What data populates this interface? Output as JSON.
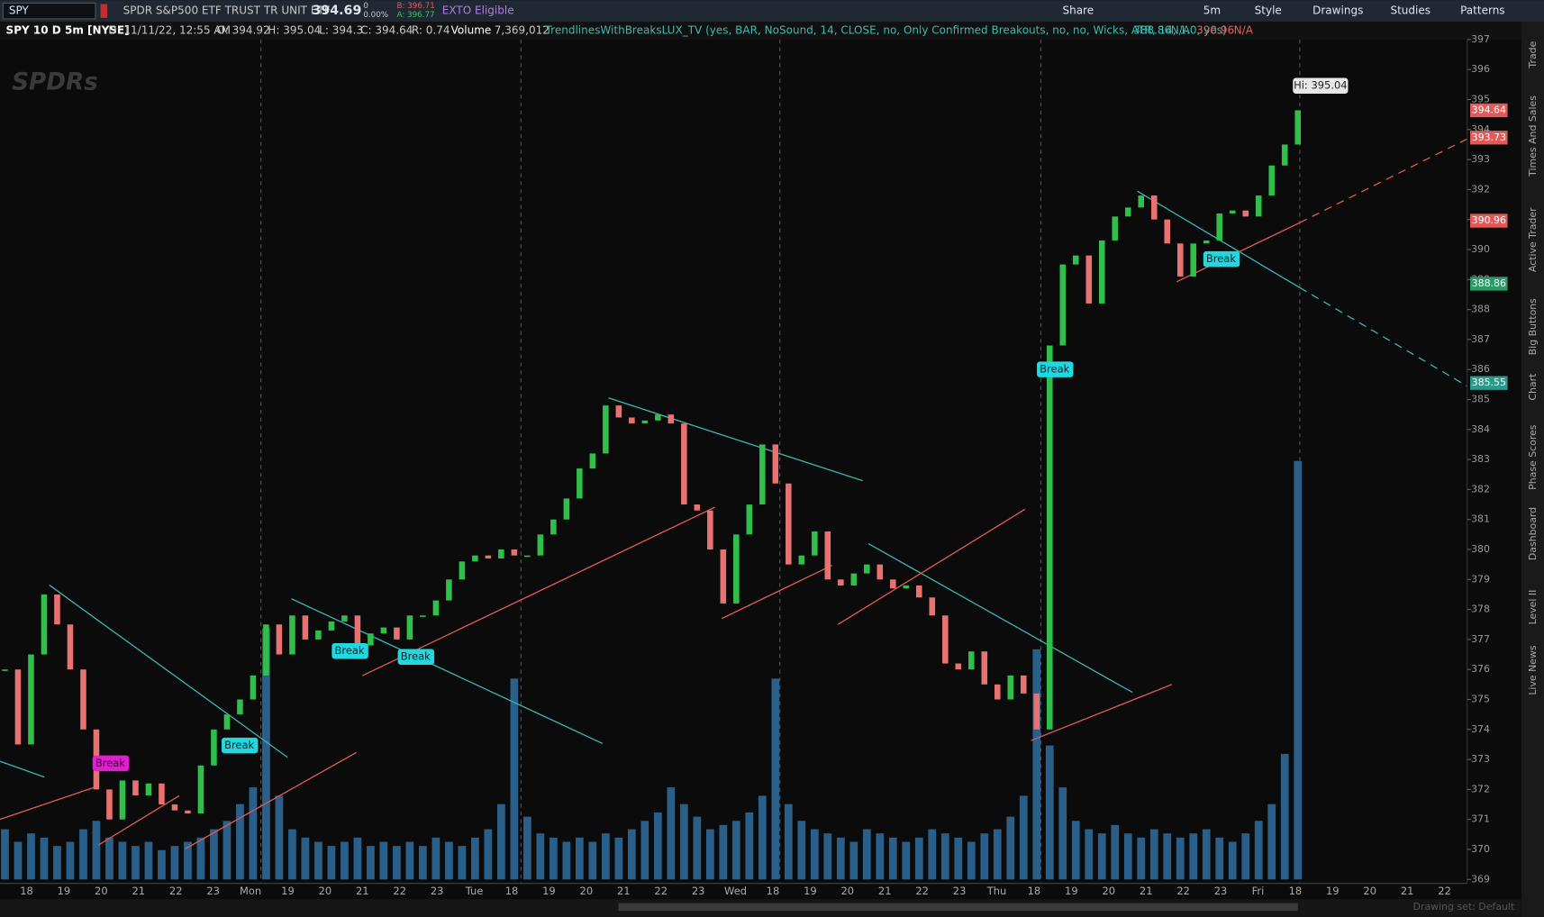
{
  "toolbar": {
    "symbol": "SPY",
    "description": "SPDR S&P500 ETF TRUST TR UNIT ETF",
    "last": "394.69",
    "change": "0",
    "change_pct": "0.00%",
    "bid": "B: 396.71",
    "ask": "A: 396.77",
    "exto": "EXTO Eligible",
    "buttons": [
      "Share",
      "5m",
      "Style",
      "Drawings",
      "Studies",
      "Patterns"
    ]
  },
  "info_bar": {
    "chart": "SPY 10 D 5m [NYSE]",
    "date": "D: 11/11/22, 12:55 AM",
    "open": "O: 394.92",
    "high": "H: 395.04",
    "low": "L: 394.3",
    "close": "C: 394.64",
    "range": "R: 0.74",
    "volume_label": "Volume",
    "volume": "7,369,012",
    "study": "TrendlinesWithBreaksLUX_TV (yes, BAR, NoSound, 14, CLOSE, no, Only Confirmed Breakouts, no, no, Wicks, ATR, 14, 1.0, yes)",
    "study_values": [
      "388.86",
      "N/A",
      "390.96",
      "N/A"
    ]
  },
  "logo": "SPDRs",
  "side_tabs": [
    "Trade",
    "Times And Sales",
    "Active Trader",
    "Big Buttons",
    "Chart",
    "Phase Scores",
    "Dashboard",
    "Level II",
    "Live News"
  ],
  "footer": "Drawing set: Default",
  "chart_data": {
    "type": "candlestick",
    "x_labels": [
      "18",
      "19",
      "20",
      "21",
      "22",
      "23",
      "Mon",
      "19",
      "20",
      "21",
      "22",
      "23",
      "Tue",
      "18",
      "19",
      "20",
      "21",
      "22",
      "23",
      "Wed",
      "18",
      "19",
      "20",
      "21",
      "22",
      "23",
      "Thu",
      "18",
      "19",
      "20",
      "21",
      "22",
      "23",
      "Fri",
      "18",
      "19",
      "20",
      "21",
      "22"
    ],
    "ylim": [
      369,
      397
    ],
    "yticks": [
      369,
      370,
      371,
      372,
      373,
      374,
      375,
      376,
      377,
      378,
      379,
      380,
      381,
      382,
      383,
      384,
      385,
      386,
      387,
      388,
      389,
      390,
      391,
      392,
      393,
      394,
      395,
      396,
      397
    ],
    "series": [
      {
        "name": "SPY",
        "up_color": "#2fbf4a",
        "down_color": "#e87272",
        "values": [
          376,
          373.5,
          376.5,
          378.5,
          377.5,
          376,
          374,
          372,
          371,
          372.3,
          371.8,
          372.2,
          371.5,
          371.3,
          371.2,
          372.8,
          374,
          374.5,
          375,
          375.8,
          377.5,
          376.5,
          377.8,
          377,
          377.3,
          377.6,
          377.8,
          376.8,
          377.2,
          377.4,
          377,
          377.8,
          377.8,
          378.3,
          379,
          379.6,
          379.8,
          379.7,
          380,
          379.8,
          379.8,
          380.5,
          381,
          381.7,
          382.7,
          383.2,
          384.8,
          384.4,
          384.2,
          384.3,
          384.5,
          384.2,
          381.5,
          381.3,
          380,
          378.2,
          380.5,
          381.5,
          383.5,
          382.2,
          379.5,
          379.8,
          380.6,
          379,
          378.8,
          379.2,
          379.5,
          379,
          378.7,
          378.8,
          378.4,
          377.8,
          376.2,
          376,
          376.6,
          375.5,
          375,
          375.8,
          375.2,
          374,
          386.8,
          389.5,
          389.8,
          388.2,
          390.3,
          391.1,
          391.4,
          391.8,
          391,
          390.2,
          389.1,
          390.2,
          390.3,
          391.2,
          391.3,
          391.1,
          391.8,
          392.8,
          393.5,
          394.64
        ]
      },
      {
        "name": "Volume",
        "color": "#2a5f8a",
        "ylim": [
          0,
          100
        ],
        "values": [
          12,
          9,
          11,
          10,
          8,
          9,
          12,
          14,
          10,
          9,
          8,
          9,
          7,
          8,
          9,
          10,
          12,
          14,
          18,
          22,
          60,
          20,
          12,
          10,
          9,
          8,
          9,
          10,
          8,
          9,
          8,
          9,
          8,
          10,
          9,
          8,
          10,
          12,
          18,
          48,
          15,
          11,
          10,
          9,
          10,
          9,
          11,
          10,
          12,
          14,
          16,
          22,
          18,
          15,
          12,
          13,
          14,
          16,
          20,
          48,
          18,
          14,
          12,
          11,
          10,
          9,
          12,
          11,
          10,
          9,
          10,
          12,
          11,
          10,
          9,
          11,
          12,
          15,
          20,
          55,
          32,
          22,
          14,
          12,
          11,
          13,
          11,
          10,
          12,
          11,
          10,
          11,
          12,
          10,
          9,
          11,
          14,
          18,
          30,
          100
        ]
      }
    ],
    "price_markers": [
      {
        "value": 394.64,
        "color": "#e05a5a"
      },
      {
        "value": 393.73,
        "color": "#e05a5a"
      },
      {
        "value": 390.96,
        "color": "#e05a5a"
      },
      {
        "value": 388.86,
        "color": "#2a9a6a"
      },
      {
        "value": 385.55,
        "color": "#2a9a8a"
      }
    ],
    "high_bubble": "Hi: 395.04",
    "breaks": [
      "Break",
      "Break",
      "Break",
      "Break",
      "Break",
      "Break"
    ]
  }
}
